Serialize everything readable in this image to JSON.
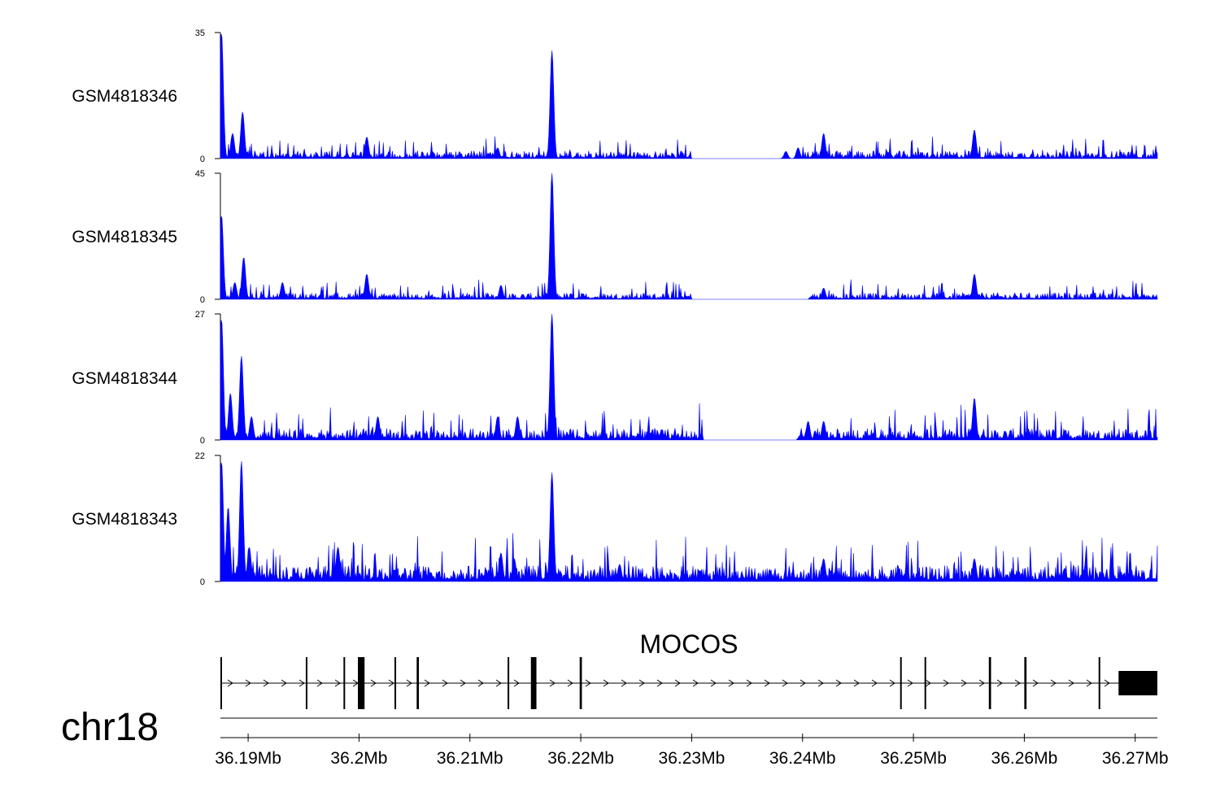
{
  "chart_data": {
    "type": "area",
    "title": "",
    "chromosome": "chr18",
    "gene_label": "MOCOS",
    "x_range_mb": [
      36.1875,
      36.272
    ],
    "x_ticks": [
      {
        "value": 36.19,
        "label": "36.19Mb"
      },
      {
        "value": 36.2,
        "label": "36.2Mb"
      },
      {
        "value": 36.21,
        "label": "36.21Mb"
      },
      {
        "value": 36.22,
        "label": "36.22Mb"
      },
      {
        "value": 36.23,
        "label": "36.23Mb"
      },
      {
        "value": 36.24,
        "label": "36.24Mb"
      },
      {
        "value": 36.25,
        "label": "36.25Mb"
      },
      {
        "value": 36.26,
        "label": "36.26Mb"
      },
      {
        "value": 36.27,
        "label": "36.27Mb"
      }
    ],
    "fill_color": "#0000ff",
    "series": [
      {
        "name": "GSM4818346",
        "ymax": 35,
        "ymin_label": "0",
        "ymax_label": "35",
        "peaks": [
          [
            36.1876,
            35
          ],
          [
            36.1886,
            7
          ],
          [
            36.1895,
            13
          ],
          [
            36.2007,
            6
          ],
          [
            36.2066,
            2
          ],
          [
            36.2125,
            3
          ],
          [
            36.2174,
            30
          ],
          [
            36.2279,
            1
          ],
          [
            36.2385,
            2
          ],
          [
            36.2396,
            3
          ],
          [
            36.2419,
            7
          ],
          [
            36.2555,
            8
          ]
        ],
        "baseline": 1.2,
        "gaps": [
          [
            36.23,
            36.24
          ]
        ]
      },
      {
        "name": "GSM4818345",
        "ymax": 45,
        "ymin_label": "0",
        "ymax_label": "45",
        "peaks": [
          [
            36.1876,
            30
          ],
          [
            36.1888,
            6
          ],
          [
            36.1896,
            15
          ],
          [
            36.1931,
            6
          ],
          [
            36.2007,
            9
          ],
          [
            36.2128,
            5
          ],
          [
            36.2174,
            45
          ],
          [
            36.2419,
            4
          ],
          [
            36.2555,
            9
          ]
        ],
        "baseline": 1.3,
        "gaps": [
          [
            36.23,
            36.2405
          ]
        ]
      },
      {
        "name": "GSM4818344",
        "ymax": 27,
        "ymin_label": "0",
        "ymax_label": "27",
        "peaks": [
          [
            36.1876,
            26
          ],
          [
            36.1884,
            10
          ],
          [
            36.1894,
            18
          ],
          [
            36.1903,
            5
          ],
          [
            36.2017,
            5
          ],
          [
            36.2125,
            5
          ],
          [
            36.2143,
            5
          ],
          [
            36.2174,
            27
          ],
          [
            36.2405,
            4
          ],
          [
            36.2419,
            4
          ],
          [
            36.2555,
            9
          ]
        ],
        "baseline": 1.4,
        "gaps": [
          [
            36.231,
            36.2395
          ]
        ]
      },
      {
        "name": "GSM4818343",
        "ymax": 22,
        "ymin_label": "0",
        "ymax_label": "22",
        "peaks": [
          [
            36.1876,
            21
          ],
          [
            36.1882,
            13
          ],
          [
            36.1894,
            21
          ],
          [
            36.1901,
            6
          ],
          [
            36.1981,
            6
          ],
          [
            36.2128,
            5
          ],
          [
            36.214,
            4
          ],
          [
            36.2174,
            19
          ],
          [
            36.2235,
            3
          ],
          [
            36.2419,
            4
          ],
          [
            36.2555,
            4
          ]
        ],
        "baseline": 1.6,
        "gaps": []
      }
    ],
    "gene_model": {
      "tx_start": 36.1875,
      "tx_end": 36.272,
      "exons": [
        [
          36.1875,
          36.1876
        ],
        [
          36.1952,
          36.1953
        ],
        [
          36.1986,
          36.1987
        ],
        [
          36.1999,
          36.2005
        ],
        [
          36.2032,
          36.2033
        ],
        [
          36.2052,
          36.2054
        ],
        [
          36.2134,
          36.2135
        ],
        [
          36.2155,
          36.216
        ],
        [
          36.2199,
          36.2201
        ],
        [
          36.2488,
          36.2489
        ],
        [
          36.251,
          36.2511
        ],
        [
          36.2568,
          36.257
        ],
        [
          36.26,
          36.2602
        ],
        [
          36.2667,
          36.2668
        ],
        [
          36.2685,
          36.272
        ]
      ],
      "thick_from": 36.2685
    }
  }
}
